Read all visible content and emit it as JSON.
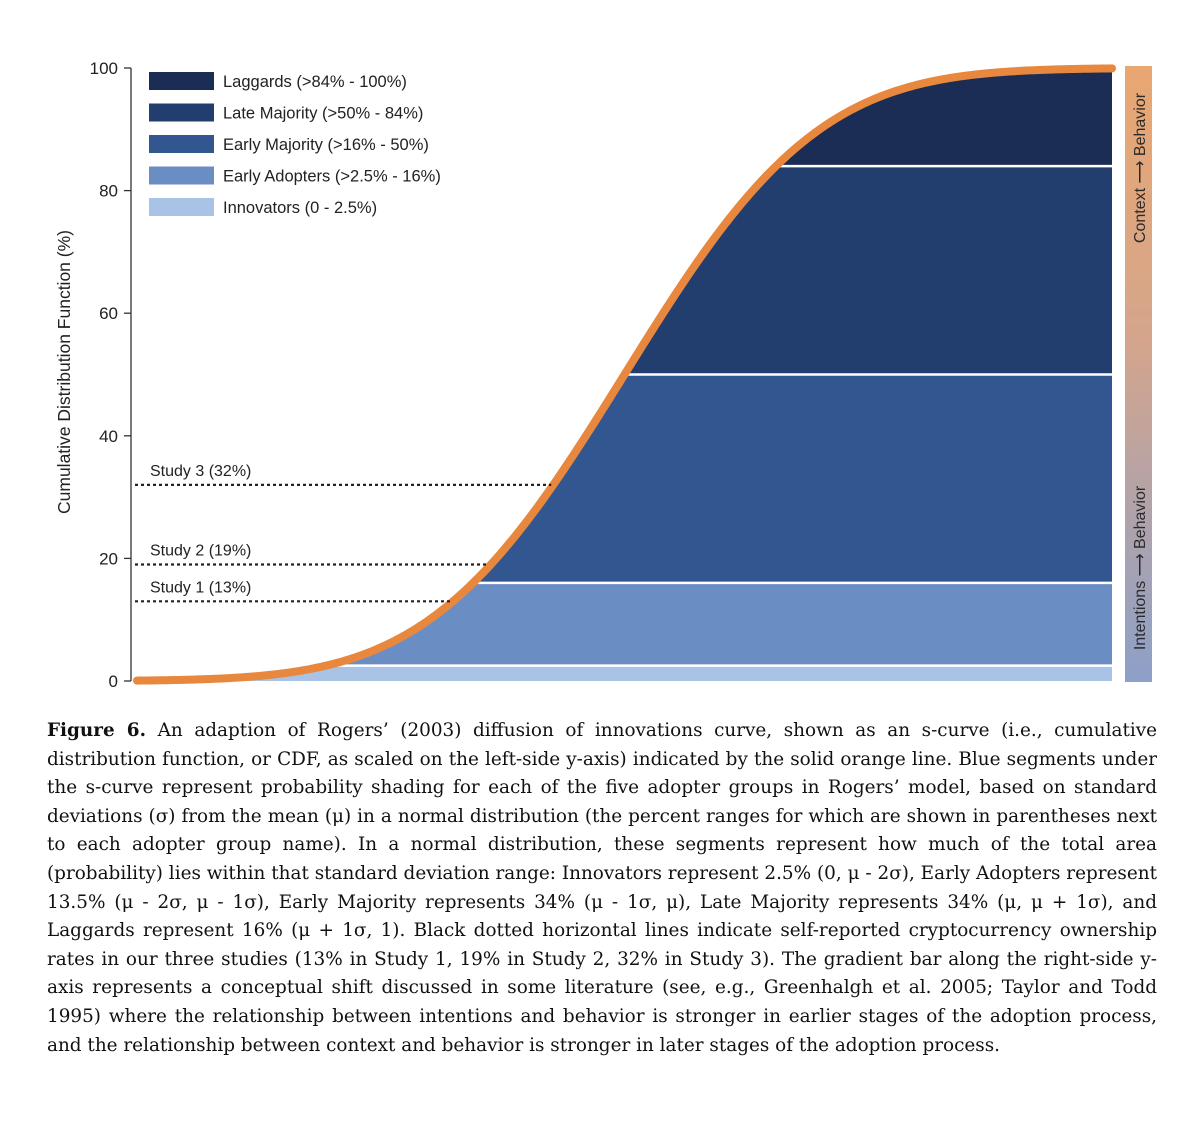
{
  "chart_data": {
    "type": "area",
    "ylabel": "Cumulative Distribution Function (%)",
    "ylim": [
      0,
      100
    ],
    "yticks": [
      0,
      20,
      40,
      60,
      80,
      100
    ],
    "curve": {
      "mean": 0,
      "sd": 1,
      "x_range": [
        -3.2,
        3.2
      ]
    },
    "colors": {
      "curve": "#e8883f",
      "laggards": "#1b2d54",
      "late_majority": "#223e6f",
      "early_majority": "#315690",
      "early_adopters": "#6a8ec4",
      "innovators": "#a9c3e6",
      "gradient_top": "#e9a771",
      "gradient_bottom": "#8da0c8"
    },
    "segments": [
      {
        "key": "innovators",
        "name": "Innovators (0 - 2.5%)",
        "from": 0,
        "to": 2.5
      },
      {
        "key": "early_adopters",
        "name": "Early Adopters (>2.5% - 16%)",
        "from": 2.5,
        "to": 16
      },
      {
        "key": "early_majority",
        "name": "Early Majority (>16% - 50%)",
        "from": 16,
        "to": 50
      },
      {
        "key": "late_majority",
        "name": "Late Majority (>50% - 84%)",
        "from": 50,
        "to": 84
      },
      {
        "key": "laggards",
        "name": "Laggards (>84% - 100%)",
        "from": 84,
        "to": 100
      }
    ],
    "legend_order": [
      "laggards",
      "late_majority",
      "early_majority",
      "early_adopters",
      "innovators"
    ],
    "legend_position": "top-left",
    "studies": [
      {
        "label": "Study 1 (13%)",
        "value": 13
      },
      {
        "label": "Study 2 (19%)",
        "value": 19
      },
      {
        "label": "Study 3 (32%)",
        "value": 32
      }
    ],
    "gradient_bar": {
      "top_label": "Context ⟶ Behavior",
      "bottom_label": "Intentions ⟶ Behavior"
    }
  },
  "caption": {
    "label": "Figure 6.",
    "text": "An adaption of Rogers’ (2003) diffusion of innovations curve, shown as an s-curve (i.e., cumulative distribution function, or CDF, as scaled on the left-side y-axis) indicated by the solid orange line. Blue segments under the s-curve represent probability shading for each of the five adopter groups in Rogers’ model, based on standard deviations (σ) from the mean (μ) in a normal distribution (the percent ranges for which are shown in parentheses next to each adopter group name). In a normal distribution, these segments represent how much of the total area (probability) lies within that standard deviation range: Innovators represent 2.5% (0, μ - 2σ), Early Adopters represent 13.5% (μ - 2σ, μ - 1σ), Early Majority represents 34% (μ - 1σ, μ), Late Majority represents 34% (μ, μ + 1σ), and Laggards represent 16% (μ + 1σ, 1). Black dotted horizontal lines indicate self-reported cryptocurrency ownership rates in our three studies (13% in Study 1, 19% in Study 2, 32% in Study 3). The gradient bar along the right-side y-axis represents a conceptual shift discussed in some literature (see, e.g., Greenhalgh et al. 2005; Taylor and Todd 1995) where the relationship between intentions and behavior is stronger in earlier stages of the adoption process, and the relationship between context and behavior is stronger in later stages of the adoption process."
  }
}
